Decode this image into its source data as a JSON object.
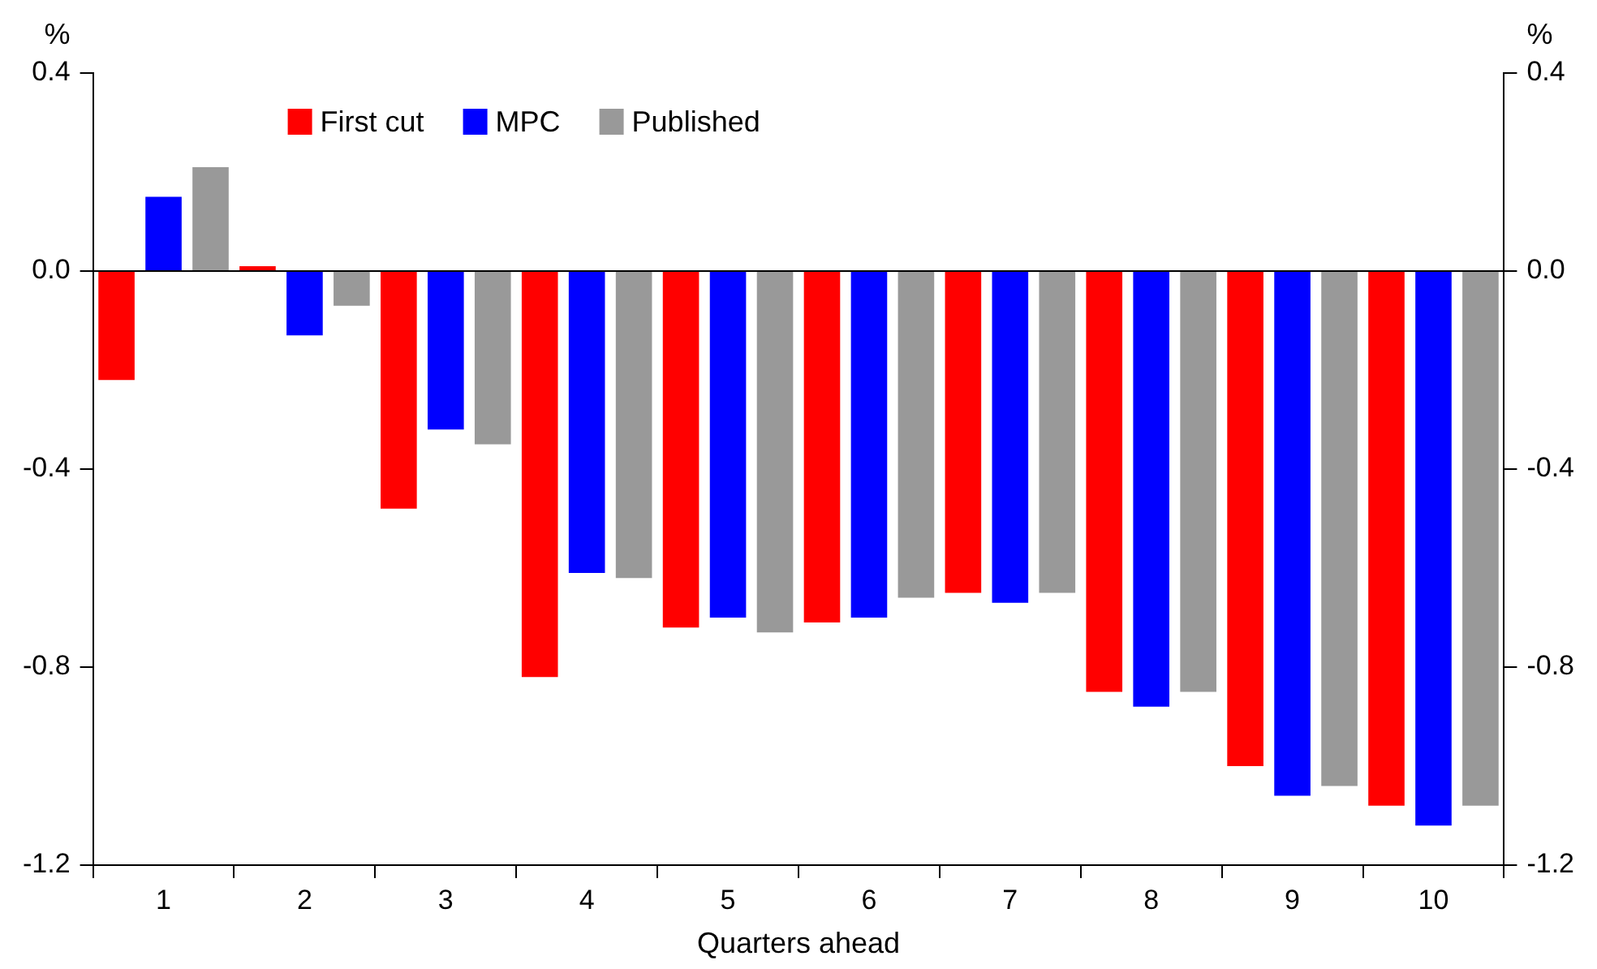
{
  "chart_data": {
    "type": "bar",
    "xlabel": "Quarters ahead",
    "ylabel": "%",
    "y2label": "%",
    "categories": [
      "1",
      "2",
      "3",
      "4",
      "5",
      "6",
      "7",
      "8",
      "9",
      "10"
    ],
    "series": [
      {
        "name": "First cut",
        "color": "#ff0000",
        "values": [
          -0.22,
          0.01,
          -0.48,
          -0.82,
          -0.72,
          -0.71,
          -0.65,
          -0.85,
          -1.0,
          -1.08
        ]
      },
      {
        "name": "MPC",
        "color": "#0000ff",
        "values": [
          0.15,
          -0.13,
          -0.32,
          -0.61,
          -0.7,
          -0.7,
          -0.67,
          -0.88,
          -1.06,
          -1.12
        ]
      },
      {
        "name": "Published",
        "color": "#999999",
        "values": [
          0.21,
          -0.07,
          -0.35,
          -0.62,
          -0.73,
          -0.66,
          -0.65,
          -0.85,
          -1.04,
          -1.08
        ]
      }
    ],
    "ylim": [
      -1.2,
      0.4
    ],
    "yticks": [
      {
        "value": -1.2,
        "label": "-1.2"
      },
      {
        "value": -0.8,
        "label": "-0.8"
      },
      {
        "value": -0.4,
        "label": "-0.4"
      },
      {
        "value": 0,
        "label": "0.0"
      },
      {
        "value": 0.4,
        "label": "0.4"
      }
    ],
    "y2lim": [
      -1.2,
      0.4
    ],
    "y2ticks": [
      {
        "value": -1.2,
        "label": "-1.2"
      },
      {
        "value": -0.8,
        "label": "-0.8"
      },
      {
        "value": -0.4,
        "label": "-0.4"
      },
      {
        "value": 0,
        "label": "0.0"
      },
      {
        "value": 0.4,
        "label": "0.4"
      }
    ],
    "ref_lines": [
      {
        "axis": "y",
        "value": 0,
        "color": "#000000"
      }
    ],
    "grid": false,
    "legend": "top left"
  }
}
